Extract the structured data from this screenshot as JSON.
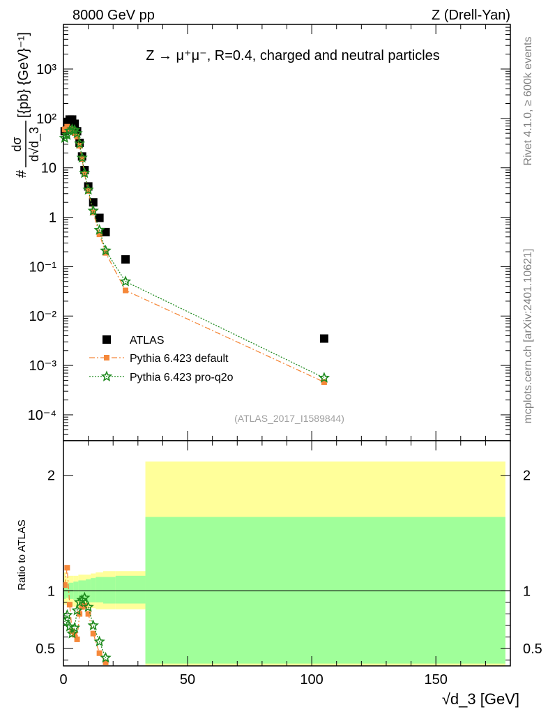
{
  "header": {
    "left": "8000 GeV pp",
    "right": "Z (Drell-Yan)"
  },
  "side": {
    "rivet": "Rivet 4.1.0, ≥ 600k events",
    "mcplots": "mcplots.cern.ch [arXiv:2401.10621]"
  },
  "colors": {
    "atlas": "#000000",
    "default": "#f5883a",
    "proq2o": "#1e8a1e",
    "band_inner": "#a0ff9a",
    "band_outer": "#ffff9a"
  },
  "chart_data": [
    {
      "type": "scatter",
      "title": "Z → μ⁺μ⁻, R=0.4, charged and neutral particles",
      "ylabel_num": "dσ",
      "ylabel_den": "d√d_3",
      "ylabel_units": "[{pb} {GeV}⁻¹]",
      "ylabel_prefix": "#",
      "yscale": "log",
      "xlim": [
        0,
        180
      ],
      "ylim": [
        3e-05,
        8000
      ],
      "yticks": [
        {
          "v": 0.0001,
          "label": "10⁻⁴"
        },
        {
          "v": 0.001,
          "label": "10⁻³"
        },
        {
          "v": 0.01,
          "label": "10⁻²"
        },
        {
          "v": 0.1,
          "label": "10⁻¹"
        },
        {
          "v": 1,
          "label": "1"
        },
        {
          "v": 10,
          "label": "10"
        },
        {
          "v": 100,
          "label": "10²"
        },
        {
          "v": 1000,
          "label": "10³"
        }
      ],
      "watermark": "(ATLAS_2017_I1589844)",
      "legend_position": "bottom-left",
      "series": [
        {
          "name": "ATLAS",
          "marker": "square",
          "x": [
            0.5,
            1.5,
            2.5,
            3.5,
            4.5,
            5.5,
            6.5,
            7.5,
            8.5,
            10.0,
            12.0,
            14.5,
            17.0,
            25.0,
            105.0
          ],
          "y": [
            55,
            85,
            95,
            95,
            78,
            55,
            32,
            17,
            9,
            4.2,
            2.0,
            0.97,
            0.5,
            0.14,
            0.0035
          ]
        },
        {
          "name": "Pythia 6.423 default",
          "marker": "square-small",
          "line": "dashdot",
          "x": [
            0.5,
            1.5,
            2.5,
            3.5,
            4.5,
            5.5,
            6.5,
            7.5,
            8.5,
            10.0,
            12.0,
            14.5,
            17.0,
            25.0,
            105.0
          ],
          "y": [
            60,
            68,
            62,
            55,
            50,
            43,
            28,
            15,
            7.5,
            3.4,
            1.25,
            0.45,
            0.19,
            0.033,
            0.00046
          ]
        },
        {
          "name": "Pythia 6.423 pro-q2o",
          "marker": "star",
          "line": "dotted",
          "x": [
            0.5,
            1.5,
            2.5,
            3.5,
            4.5,
            5.5,
            6.5,
            7.5,
            8.5,
            10.0,
            12.0,
            14.5,
            17.0,
            25.0,
            105.0
          ],
          "y": [
            40,
            46,
            56,
            60,
            58,
            50,
            31,
            16,
            7.8,
            3.6,
            1.35,
            0.55,
            0.21,
            0.05,
            0.00056
          ]
        }
      ]
    },
    {
      "type": "line",
      "ylabel": "Ratio to ATLAS",
      "xlabel": "√d_3 [GeV]",
      "xlim": [
        0,
        180
      ],
      "ylim": [
        0.35,
        2.3
      ],
      "xticks": [
        0,
        50,
        100,
        150
      ],
      "yticks": [
        0.5,
        1,
        2
      ],
      "bands": [
        {
          "x0": 0,
          "x1": 1,
          "inner": [
            0.93,
            1.07
          ],
          "outer": [
            0.88,
            1.16
          ]
        },
        {
          "x0": 1,
          "x1": 2,
          "inner": [
            0.94,
            1.06
          ],
          "outer": [
            0.88,
            1.12
          ]
        },
        {
          "x0": 2,
          "x1": 4,
          "inner": [
            0.93,
            1.07
          ],
          "outer": [
            0.87,
            1.13
          ]
        },
        {
          "x0": 4,
          "x1": 6,
          "inner": [
            0.92,
            1.08
          ],
          "outer": [
            0.86,
            1.13
          ]
        },
        {
          "x0": 6,
          "x1": 9,
          "inner": [
            0.91,
            1.09
          ],
          "outer": [
            0.85,
            1.14
          ]
        },
        {
          "x0": 9,
          "x1": 11,
          "inner": [
            0.9,
            1.1
          ],
          "outer": [
            0.85,
            1.14
          ]
        },
        {
          "x0": 11,
          "x1": 13,
          "inner": [
            0.9,
            1.11
          ],
          "outer": [
            0.85,
            1.15
          ]
        },
        {
          "x0": 13,
          "x1": 16,
          "inner": [
            0.9,
            1.12
          ],
          "outer": [
            0.84,
            1.16
          ]
        },
        {
          "x0": 16,
          "x1": 21,
          "inner": [
            0.89,
            1.12
          ],
          "outer": [
            0.84,
            1.17
          ]
        },
        {
          "x0": 21,
          "x1": 33,
          "inner": [
            0.89,
            1.13
          ],
          "outer": [
            0.84,
            1.17
          ]
        },
        {
          "x0": 33,
          "x1": 178,
          "inner": [
            0.37,
            1.64
          ],
          "outer": [
            0.35,
            2.12
          ]
        }
      ],
      "series": [
        {
          "name": "Pythia 6.423 default",
          "x": [
            0.5,
            1.5,
            2.5,
            3.5,
            4.5,
            5.5,
            6.5,
            7.5,
            8.5,
            10.0,
            12.0,
            14.5,
            17.0
          ],
          "y": [
            1.05,
            1.2,
            0.88,
            0.65,
            0.62,
            0.58,
            0.8,
            0.86,
            0.87,
            0.8,
            0.63,
            0.46,
            0.38
          ]
        },
        {
          "name": "Pythia 6.423 pro-q2o",
          "x": [
            0.5,
            1.5,
            2.5,
            3.5,
            4.5,
            5.5,
            6.5,
            7.5,
            8.5,
            10.0,
            12.0,
            14.5,
            17.0
          ],
          "y": [
            0.73,
            0.79,
            0.69,
            0.63,
            0.68,
            0.83,
            0.9,
            0.92,
            0.94,
            0.86,
            0.7,
            0.56,
            0.42
          ]
        }
      ]
    }
  ]
}
